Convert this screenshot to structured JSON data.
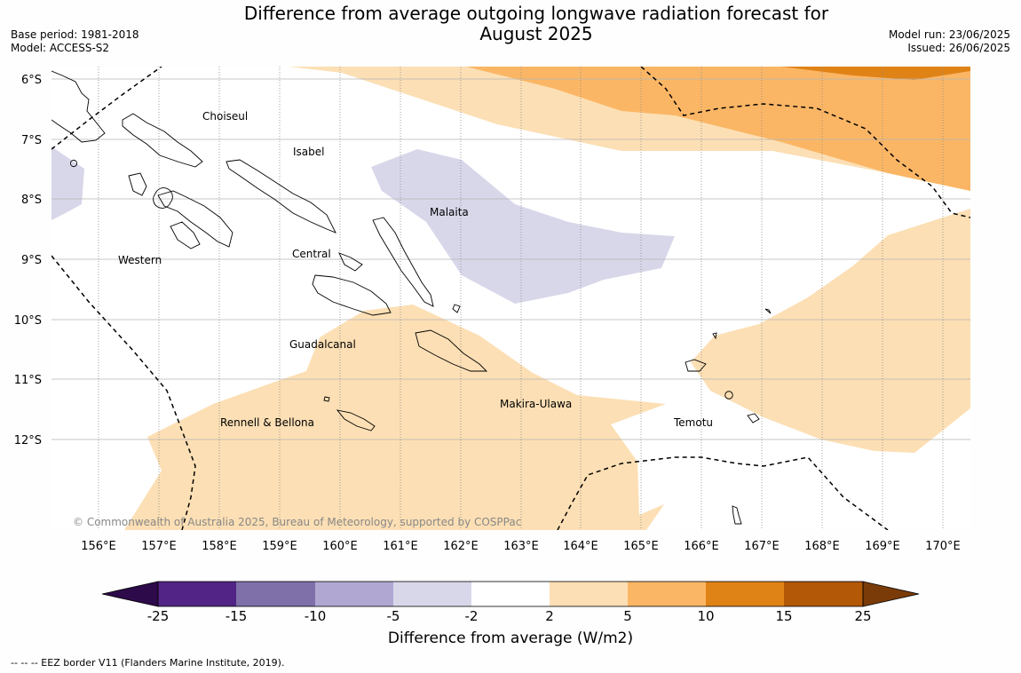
{
  "title_line1": "Difference from average outgoing longwave radiation forecast for",
  "title_line2": "August 2025",
  "meta": {
    "base_period": "Base period: 1981-2018",
    "model": "Model: ACCESS-S2",
    "model_run": "Model run: 23/06/2025",
    "issued": "Issued: 26/06/2025"
  },
  "map": {
    "lat_labels": [
      "6°S",
      "7°S",
      "8°S",
      "9°S",
      "10°S",
      "11°S",
      "12°S"
    ],
    "lon_labels": [
      "156°E",
      "157°E",
      "158°E",
      "159°E",
      "160°E",
      "161°E",
      "162°E",
      "163°E",
      "164°E",
      "165°E",
      "166°E",
      "167°E",
      "168°E",
      "169°E",
      "170°E"
    ],
    "regions": [
      {
        "name": "Choiseul"
      },
      {
        "name": "Isabel"
      },
      {
        "name": "Malaita"
      },
      {
        "name": "Western"
      },
      {
        "name": "Central"
      },
      {
        "name": "Guadalcanal"
      },
      {
        "name": "Makira-Ulawa"
      },
      {
        "name": "Rennell & Bellona"
      },
      {
        "name": "Temotu"
      }
    ],
    "copyright": "© Commonwealth of Australia 2025, Bureau of Meteorology, supported by COSPPac"
  },
  "colorbar": {
    "ticks": [
      "-25",
      "-15",
      "-10",
      "-5",
      "-2",
      "2",
      "5",
      "10",
      "15",
      "25"
    ],
    "colors": [
      "#522485",
      "#7f70aa",
      "#b0a7d2",
      "#d8d7ea",
      "#ffffff",
      "#fcdfb4",
      "#fbb665",
      "#e08317",
      "#b35806"
    ],
    "under_color": "#2d0a4a",
    "over_color": "#7a3b08",
    "label": "Difference from average (W/m2)"
  },
  "footer": "--  --  -- EEZ border V11 (Flanders Marine Institute, 2019)."
}
